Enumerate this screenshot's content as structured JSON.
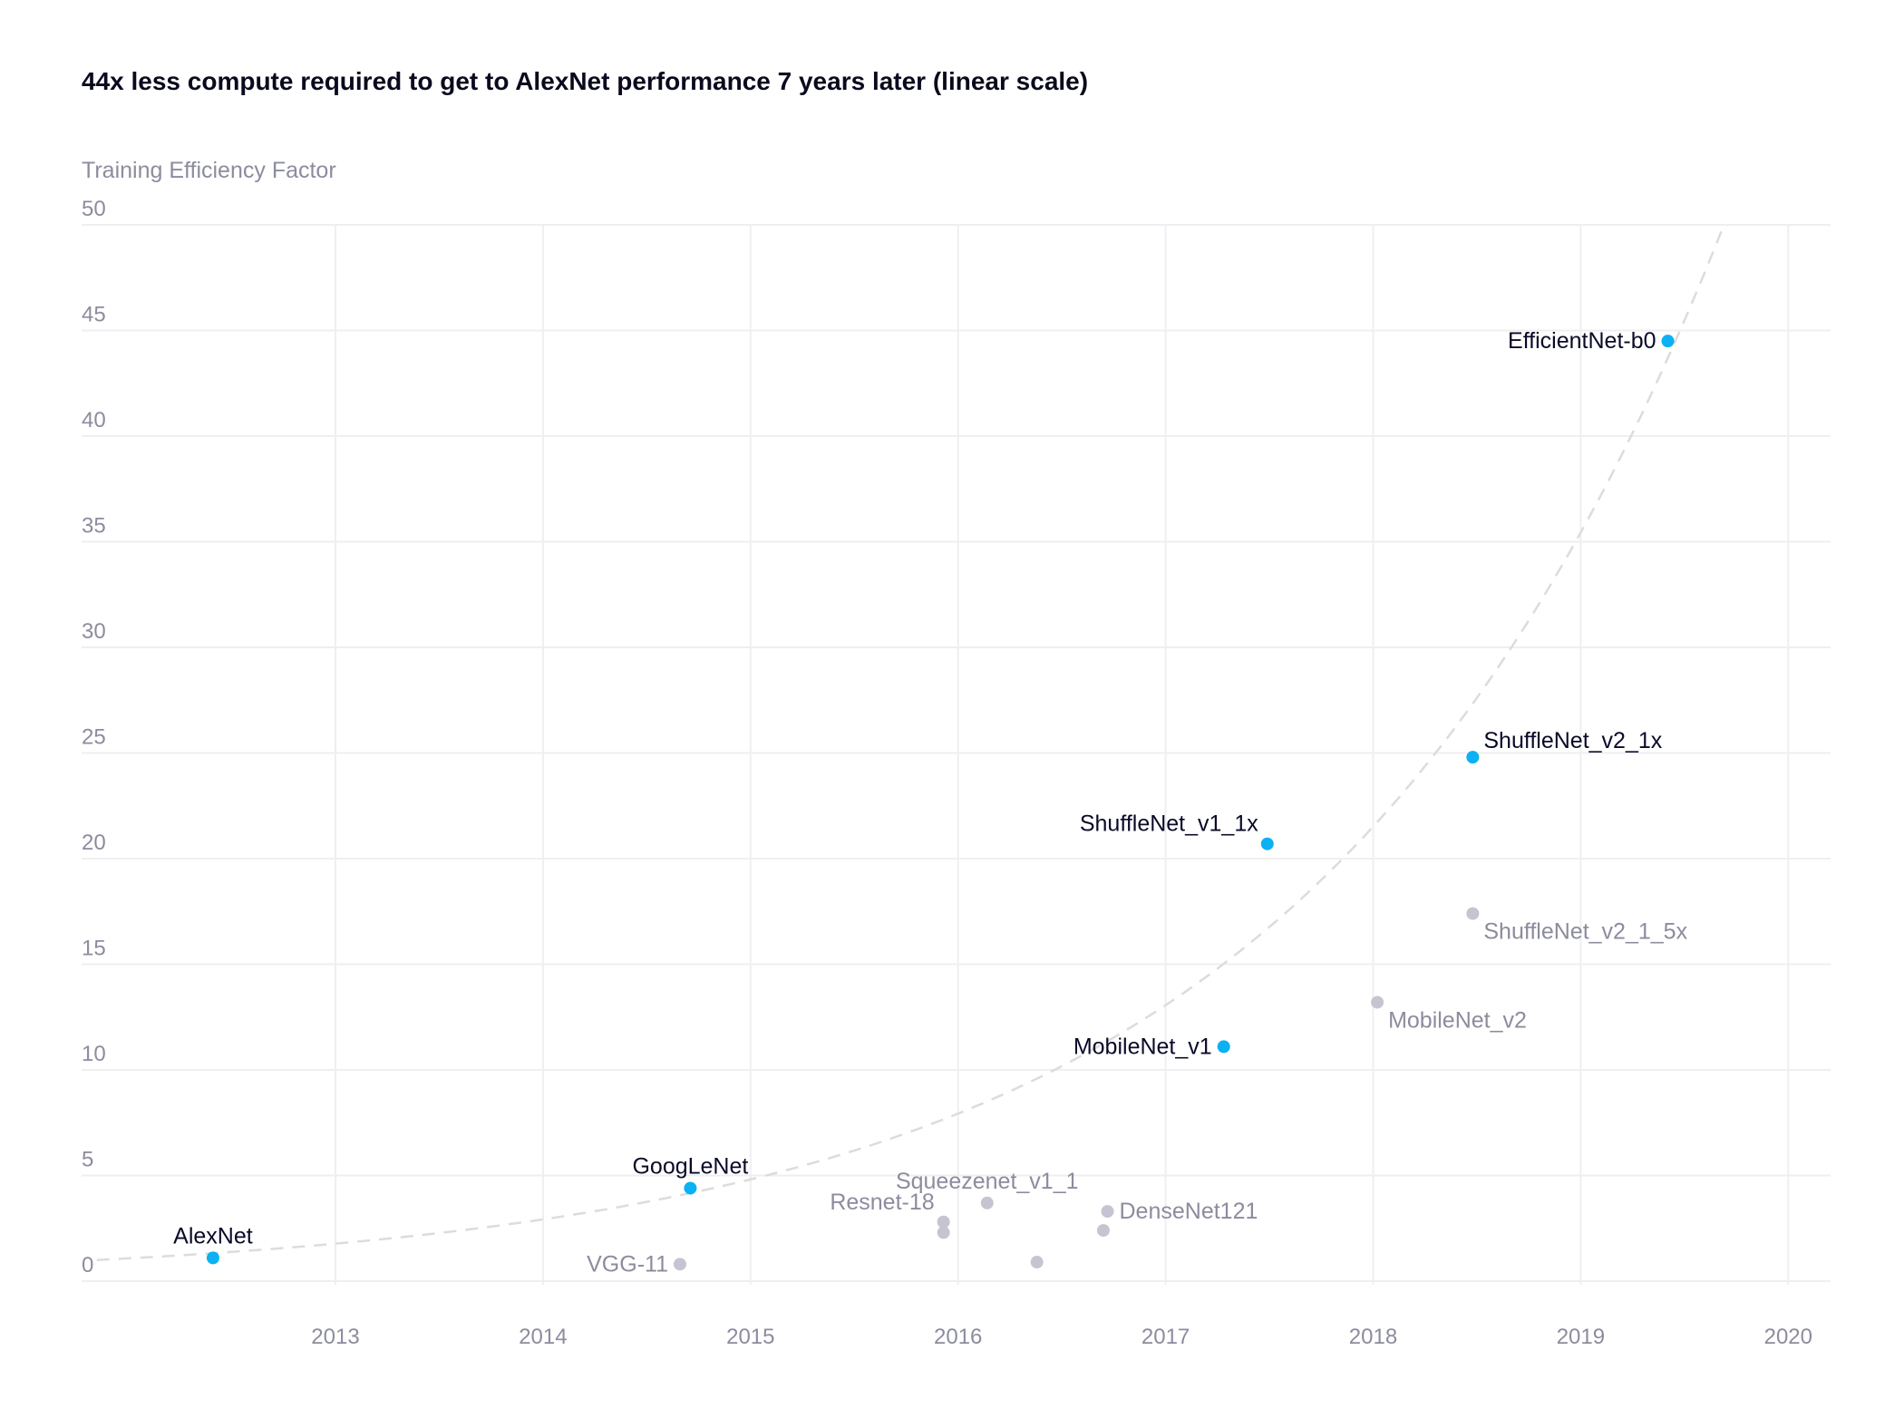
{
  "chart_data": {
    "type": "scatter",
    "title": "44x less compute required to get to AlexNet performance 7 years later (linear scale)",
    "xlabel": "",
    "ylabel": "Training Efficiency Factor",
    "xlim": [
      2011.9,
      2020.2
    ],
    "ylim": [
      0,
      50
    ],
    "grid": true,
    "x_ticks": [
      "2013",
      "2014",
      "2015",
      "2016",
      "2017",
      "2018",
      "2019",
      "2020"
    ],
    "y_ticks": [
      "0",
      "5",
      "10",
      "15",
      "20",
      "25",
      "30",
      "35",
      "40",
      "45",
      "50"
    ],
    "colors": {
      "highlight": "#0bb1f2",
      "other": "#c5c5d2",
      "highlight_text": "#0a0a28",
      "other_text": "#8c8c9e",
      "trend": "#dcdcdc",
      "grid": "#efeff2"
    },
    "trend": {
      "style": "dashed",
      "type": "exponential",
      "start_year": 2011.85,
      "start_value": 1.0,
      "end_year": 2019.69,
      "end_value": 50
    },
    "points": [
      {
        "label": "AlexNet",
        "x": 2012.41,
        "y": 1.1,
        "highlight": true,
        "label_pos": "above"
      },
      {
        "label": "GoogLeNet",
        "x": 2014.71,
        "y": 4.4,
        "highlight": true,
        "label_pos": "above"
      },
      {
        "label": "VGG-11",
        "x": 2014.66,
        "y": 0.8,
        "highlight": false,
        "label_pos": "left"
      },
      {
        "label": "Resnet-18",
        "x": 2015.93,
        "y": 2.8,
        "highlight": false,
        "label_pos": "above-left"
      },
      {
        "label": "",
        "x": 2015.93,
        "y": 2.3,
        "highlight": false,
        "label_pos": "none"
      },
      {
        "label": "Squeezenet_v1_1",
        "x": 2016.14,
        "y": 3.7,
        "highlight": false,
        "label_pos": "above"
      },
      {
        "label": "",
        "x": 2016.38,
        "y": 0.9,
        "highlight": false,
        "label_pos": "none"
      },
      {
        "label": "DenseNet121",
        "x": 2016.72,
        "y": 3.3,
        "highlight": false,
        "label_pos": "right"
      },
      {
        "label": "",
        "x": 2016.7,
        "y": 2.4,
        "highlight": false,
        "label_pos": "none"
      },
      {
        "label": "MobileNet_v1",
        "x": 2017.28,
        "y": 11.1,
        "highlight": true,
        "label_pos": "left"
      },
      {
        "label": "ShuffleNet_v1_1x",
        "x": 2017.49,
        "y": 20.7,
        "highlight": true,
        "label_pos": "above-left"
      },
      {
        "label": "MobileNet_v2",
        "x": 2018.02,
        "y": 13.2,
        "highlight": false,
        "label_pos": "below-right"
      },
      {
        "label": "ShuffleNet_v2_1_5x",
        "x": 2018.48,
        "y": 17.4,
        "highlight": false,
        "label_pos": "below-right"
      },
      {
        "label": "ShuffleNet_v2_1x",
        "x": 2018.48,
        "y": 24.8,
        "highlight": true,
        "label_pos": "above-right"
      },
      {
        "label": "EfficientNet-b0",
        "x": 2019.42,
        "y": 44.5,
        "highlight": true,
        "label_pos": "left"
      }
    ]
  }
}
